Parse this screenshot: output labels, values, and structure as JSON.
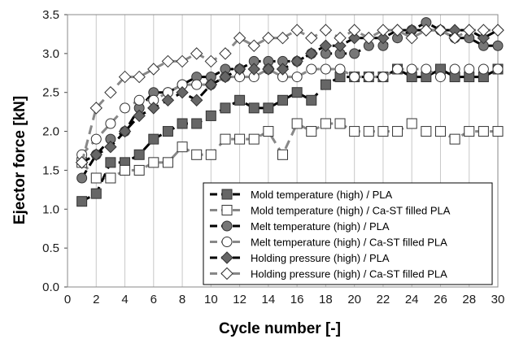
{
  "chart_data": {
    "type": "scatter",
    "xlabel": "Cycle number [-]",
    "ylabel": "Ejector force [kN]",
    "xlim": [
      0,
      30
    ],
    "ylim": [
      0,
      3.5
    ],
    "x_ticks": [
      "0",
      "2",
      "4",
      "6",
      "8",
      "10",
      "12",
      "14",
      "16",
      "18",
      "20",
      "22",
      "24",
      "26",
      "28",
      "30"
    ],
    "y_ticks": [
      "0.0",
      "0.5",
      "1.0",
      "1.5",
      "2.0",
      "2.5",
      "3.0",
      "3.5"
    ],
    "grid": "vertical",
    "legend_position": "bottom-right",
    "x": [
      1,
      2,
      3,
      4,
      5,
      6,
      7,
      8,
      9,
      10,
      11,
      12,
      13,
      14,
      15,
      16,
      17,
      18,
      19,
      20,
      21,
      22,
      23,
      24,
      25,
      26,
      27,
      28,
      29,
      30
    ],
    "series": [
      {
        "name": "Mold temperature (high) / PLA",
        "marker": "square",
        "fill": "#666666",
        "dash": "#000000",
        "values": [
          1.1,
          1.2,
          1.6,
          1.6,
          1.7,
          1.9,
          2.0,
          2.1,
          2.1,
          2.2,
          2.3,
          2.4,
          2.3,
          2.3,
          2.4,
          2.5,
          2.4,
          2.6,
          2.7,
          2.7,
          2.7,
          2.7,
          2.8,
          2.7,
          2.7,
          2.8,
          2.7,
          2.7,
          2.7,
          2.8
        ]
      },
      {
        "name": "Mold temperature (high) / Ca-ST filled PLA",
        "marker": "square",
        "fill": "#ffffff",
        "dash": "#888888",
        "values": [
          1.6,
          1.4,
          1.4,
          1.5,
          1.5,
          1.6,
          1.6,
          1.8,
          1.7,
          1.7,
          1.9,
          1.9,
          1.9,
          2.0,
          1.7,
          2.1,
          2.0,
          2.1,
          2.1,
          2.0,
          2.0,
          2.0,
          2.0,
          2.1,
          2.0,
          2.0,
          1.9,
          2.0,
          2.0,
          2.0
        ]
      },
      {
        "name": "Melt temperature (high) / PLA",
        "marker": "circle",
        "fill": "#777777",
        "dash": "#000000",
        "values": [
          1.4,
          1.7,
          1.9,
          2.0,
          2.3,
          2.5,
          2.5,
          2.6,
          2.7,
          2.7,
          2.8,
          2.8,
          2.9,
          2.9,
          2.9,
          2.9,
          3.0,
          3.0,
          3.0,
          3.0,
          3.1,
          3.1,
          3.2,
          3.3,
          3.4,
          3.3,
          3.2,
          3.2,
          3.1,
          3.1
        ]
      },
      {
        "name": "Melt temperature (high) / Ca-ST filled PLA",
        "marker": "circle",
        "fill": "#ffffff",
        "dash": "#888888",
        "values": [
          1.7,
          1.9,
          2.1,
          2.3,
          2.4,
          2.4,
          2.5,
          2.6,
          2.6,
          2.6,
          2.7,
          2.7,
          2.7,
          2.8,
          2.7,
          2.7,
          2.8,
          2.8,
          2.8,
          2.7,
          2.7,
          2.7,
          2.8,
          2.8,
          2.8,
          2.7,
          2.8,
          2.8,
          2.8,
          2.8
        ]
      },
      {
        "name": "Holding pressure (high) / PLA",
        "marker": "diamond",
        "fill": "#666666",
        "dash": "#000000",
        "values": [
          1.6,
          1.7,
          1.8,
          2.0,
          2.2,
          2.3,
          2.4,
          2.5,
          2.4,
          2.6,
          2.7,
          2.8,
          2.8,
          2.8,
          2.8,
          2.9,
          3.0,
          3.1,
          3.1,
          3.2,
          3.2,
          3.2,
          3.3,
          3.3,
          3.3,
          3.3,
          3.3,
          3.3,
          3.2,
          3.3
        ]
      },
      {
        "name": "Holding pressure (high) / Ca-ST filled PLA",
        "marker": "diamond",
        "fill": "#ffffff",
        "dash": "#888888",
        "values": [
          1.6,
          2.3,
          2.5,
          2.7,
          2.7,
          2.8,
          2.9,
          2.9,
          3.0,
          2.9,
          3.0,
          3.2,
          3.1,
          3.2,
          3.2,
          3.3,
          3.2,
          3.3,
          3.2,
          3.3,
          3.2,
          3.3,
          3.3,
          3.2,
          3.3,
          3.3,
          3.2,
          3.3,
          3.3,
          3.3
        ]
      }
    ]
  }
}
